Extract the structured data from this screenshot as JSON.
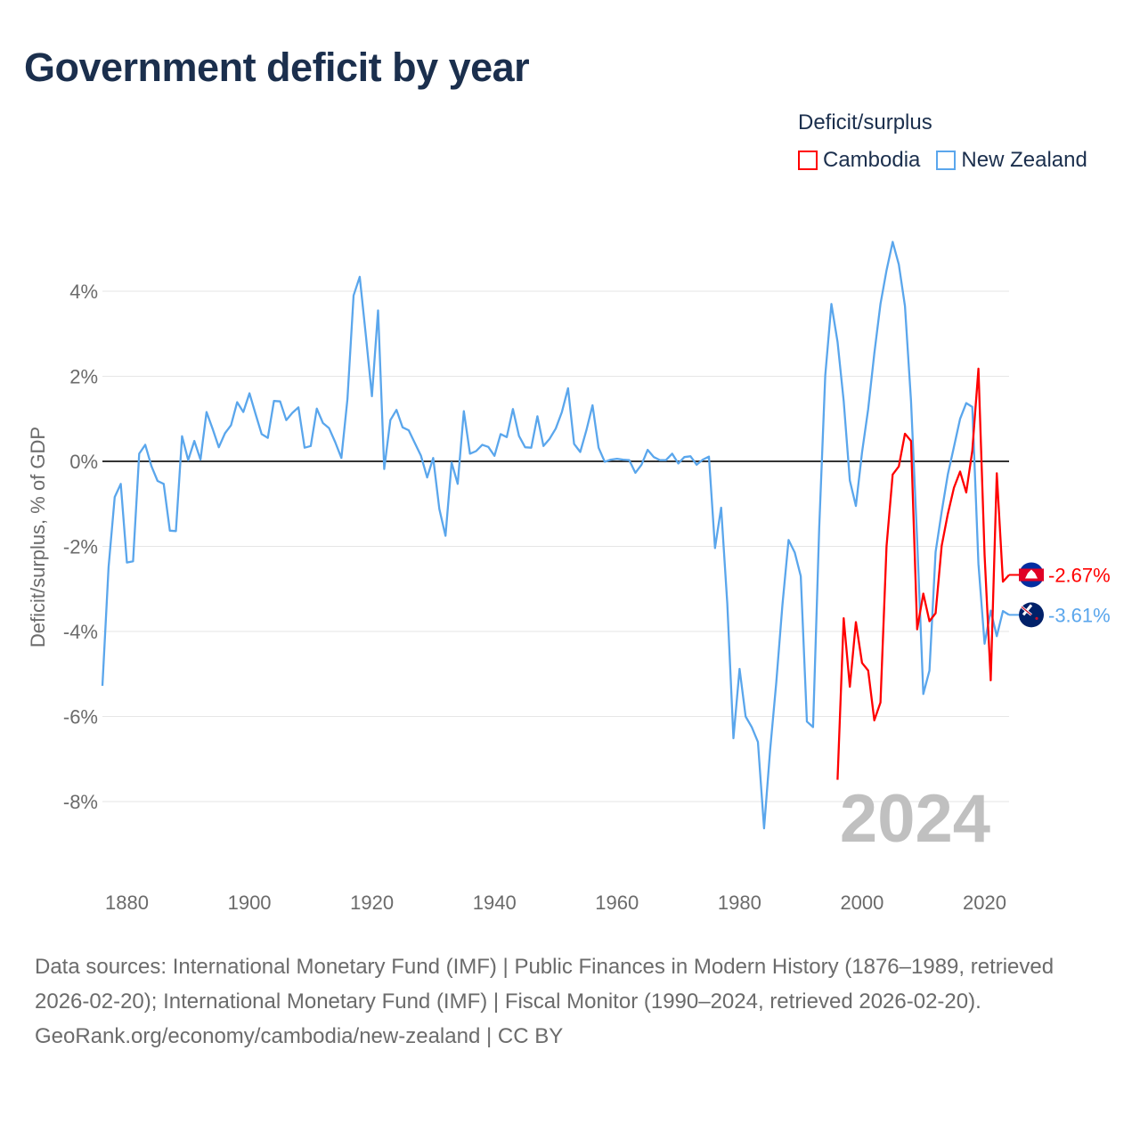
{
  "title": "Government deficit by year",
  "legend": {
    "title": "Deficit/surplus",
    "items": [
      {
        "label": "Cambodia",
        "color": "#ff0000"
      },
      {
        "label": "New Zealand",
        "color": "#5aa6ec"
      }
    ]
  },
  "footer": {
    "sources": "Data sources: International Monetary Fund (IMF) | Public Finances in Modern History (1876–1989, retrieved 2026-02-20); International Monetary Fund (IMF) | Fiscal Monitor (1990–2024, retrieved 2026-02-20).",
    "credit": "GeoRank.org/economy/cambodia/new-zealand | CC BY"
  },
  "chart_data": {
    "type": "line",
    "title": "Government deficit by year",
    "ylabel": "Deficit/surplus, % of GDP",
    "xlabel": "",
    "xlim": [
      1876,
      2024
    ],
    "ylim": [
      -9.8,
      5.4
    ],
    "x_ticks": [
      1880,
      1900,
      1920,
      1940,
      1960,
      1980,
      2000,
      2020
    ],
    "x_tick_labels": [
      "1880",
      "1900",
      "1920",
      "1940",
      "1960",
      "1980",
      "2000",
      "2020"
    ],
    "y_ticks": [
      -8,
      -6,
      -4,
      -2,
      0,
      2,
      4
    ],
    "y_tick_labels": [
      "-8%",
      "-6%",
      "-4%",
      "-2%",
      "0%",
      "2%",
      "4%"
    ],
    "grid": true,
    "year_watermark": "2024",
    "series": [
      {
        "name": "Cambodia",
        "color": "#ff0000",
        "end_label": "-2.67%",
        "start_year": 1996,
        "values": [
          -7.49,
          -3.69,
          -5.3,
          -3.78,
          -4.74,
          -4.92,
          -6.09,
          -5.67,
          -2.0,
          -0.31,
          -0.12,
          0.65,
          0.48,
          -3.95,
          -3.11,
          -3.76,
          -3.57,
          -1.99,
          -1.24,
          -0.62,
          -0.24,
          -0.73,
          0.25,
          2.18,
          -2.2,
          -5.15,
          -0.28,
          -2.83,
          -2.67
        ]
      },
      {
        "name": "New Zealand",
        "color": "#5aa6ec",
        "end_label": "-3.61%",
        "start_year": 1876,
        "values": [
          -5.28,
          -2.49,
          -0.84,
          -0.53,
          -2.38,
          -2.35,
          0.18,
          0.39,
          -0.11,
          -0.46,
          -0.53,
          -1.63,
          -1.64,
          0.59,
          0.03,
          0.48,
          0.04,
          1.16,
          0.76,
          0.33,
          0.66,
          0.85,
          1.39,
          1.16,
          1.6,
          1.11,
          0.64,
          0.55,
          1.42,
          1.41,
          0.97,
          1.14,
          1.27,
          0.32,
          0.36,
          1.24,
          0.9,
          0.78,
          0.45,
          0.08,
          1.46,
          3.9,
          4.34,
          2.96,
          1.53,
          3.55,
          -0.18,
          0.97,
          1.21,
          0.8,
          0.73,
          0.43,
          0.13,
          -0.38,
          0.08,
          -1.12,
          -1.75,
          -0.03,
          -0.53,
          1.18,
          0.18,
          0.24,
          0.39,
          0.34,
          0.13,
          0.64,
          0.57,
          1.23,
          0.6,
          0.33,
          0.32,
          1.06,
          0.36,
          0.53,
          0.77,
          1.16,
          1.72,
          0.41,
          0.22,
          0.73,
          1.32,
          0.32,
          -0.01,
          0.04,
          0.06,
          0.04,
          0.03,
          -0.27,
          -0.08,
          0.27,
          0.1,
          0.03,
          0.03,
          0.18,
          -0.05,
          0.1,
          0.12,
          -0.08,
          0.04,
          0.11,
          -2.04,
          -1.09,
          -3.34,
          -6.51,
          -4.88,
          -6.0,
          -6.25,
          -6.6,
          -8.63,
          -6.79,
          -5.2,
          -3.38,
          -1.85,
          -2.14,
          -2.7,
          -6.12,
          -6.25,
          -1.57,
          2.02,
          3.7,
          2.81,
          1.42,
          -0.45,
          -1.05,
          0.21,
          1.23,
          2.54,
          3.7,
          4.49,
          5.16,
          4.63,
          3.65,
          1.42,
          -1.85,
          -5.47,
          -4.92,
          -2.13,
          -1.19,
          -0.31,
          0.34,
          1.0,
          1.37,
          1.28,
          -2.41,
          -4.29,
          -3.51,
          -4.11,
          -3.52,
          -3.61
        ]
      }
    ]
  }
}
